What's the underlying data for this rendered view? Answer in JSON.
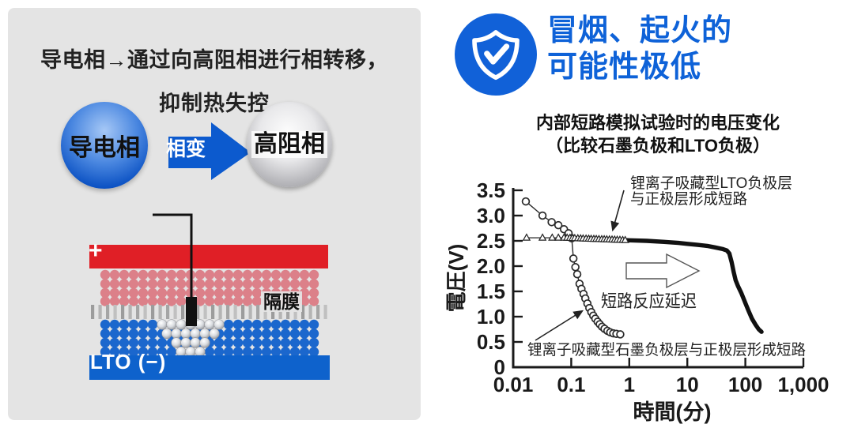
{
  "left_panel": {
    "heading_line1": "导电相→通过向高阻相进行相转移，",
    "heading_line2": "抑制热失控",
    "conductive_sphere_label": "导电相",
    "arrow_label": "相变",
    "resistive_sphere_label": "高阻相",
    "battery": {
      "positive_label": "+",
      "separator_label": "隔膜",
      "negative_label": "LTO (−)"
    },
    "colors": {
      "panel_bg": "#e4e4e4",
      "sphere_blue_edge": "#0a46ad",
      "arrow_blue": "#0c5ace",
      "positive_red": "#e01f26",
      "cathode_pink": "#dc8089",
      "separator_gray": "#a6a6a6",
      "anode_blue": "#1b67cd",
      "negative_blue": "#0e62cc",
      "nail_black": "#111111"
    }
  },
  "right_panel": {
    "title_line1": "冒烟、起火的",
    "title_line2": "可能性极低",
    "subtitle_line1": "内部短路模拟试验时的电压变化",
    "subtitle_line2": "（比较石墨负极和LTO负极）",
    "colors": {
      "accent_blue": "#0e62d8",
      "badge_blue": "#1161d8"
    }
  },
  "chart_data": {
    "type": "line",
    "title": "内部短路模拟试验时的电压变化（比较石墨负极和LTO负极）",
    "xlabel": "時間(分)",
    "ylabel": "電圧(V)",
    "x_scale": "log",
    "xlim": [
      0.01,
      1000
    ],
    "ylim": [
      0,
      3.5
    ],
    "grid": false,
    "legend": "none",
    "x_tick_values": [
      0.01,
      0.1,
      1,
      10,
      100,
      1000
    ],
    "x_tick_labels": [
      "0.01",
      "0.1",
      "1",
      "10",
      "100",
      "1,000"
    ],
    "y_tick_values": [
      0,
      0.5,
      1.0,
      1.5,
      2.0,
      2.5,
      3.0,
      3.5
    ],
    "y_tick_labels": [
      "0",
      "0.5",
      "1.0",
      "1.5",
      "2.0",
      "2.5",
      "3.0",
      "3.5"
    ],
    "series": [
      {
        "name": "锂离子吸藏型石墨负极层与正极层形成短路",
        "marker": "circle",
        "points": [
          [
            0.0165,
            3.28
          ],
          [
            0.032,
            3.0
          ],
          [
            0.046,
            2.87
          ],
          [
            0.06,
            2.81
          ],
          [
            0.075,
            2.73
          ],
          [
            0.09,
            2.65
          ],
          [
            0.102,
            2.55
          ],
          [
            0.109,
            2.15
          ],
          [
            0.118,
            1.98
          ],
          [
            0.127,
            1.84
          ],
          [
            0.139,
            1.65
          ],
          [
            0.15,
            1.55
          ],
          [
            0.163,
            1.45
          ],
          [
            0.175,
            1.36
          ],
          [
            0.19,
            1.26
          ],
          [
            0.205,
            1.17
          ],
          [
            0.222,
            1.09
          ],
          [
            0.24,
            1.02
          ],
          [
            0.26,
            0.96
          ],
          [
            0.285,
            0.9
          ],
          [
            0.31,
            0.85
          ],
          [
            0.34,
            0.8
          ],
          [
            0.375,
            0.76
          ],
          [
            0.42,
            0.72
          ],
          [
            0.47,
            0.69
          ],
          [
            0.53,
            0.67
          ],
          [
            0.6,
            0.66
          ],
          [
            0.7,
            0.65
          ]
        ]
      },
      {
        "name": "锂离子吸藏型LTO负极层与正极层形成短路",
        "marker": "triangle",
        "points": [
          [
            0.017,
            2.56
          ],
          [
            0.032,
            2.56
          ],
          [
            0.047,
            2.56
          ],
          [
            0.06,
            2.56
          ],
          [
            0.075,
            2.56
          ],
          [
            0.08,
            2.56
          ],
          [
            0.12,
            2.55
          ],
          [
            0.2,
            2.54
          ],
          [
            0.35,
            2.53
          ],
          [
            0.6,
            2.52
          ],
          [
            1,
            2.51
          ],
          [
            2,
            2.5
          ],
          [
            4,
            2.48
          ],
          [
            7,
            2.46
          ],
          [
            10,
            2.44
          ],
          [
            15,
            2.42
          ],
          [
            22,
            2.4
          ],
          [
            30,
            2.37
          ],
          [
            40,
            2.34
          ],
          [
            48,
            2.31
          ],
          [
            53,
            2.25
          ],
          [
            58,
            2.08
          ],
          [
            63,
            1.88
          ],
          [
            68,
            1.72
          ],
          [
            75,
            1.6
          ],
          [
            85,
            1.47
          ],
          [
            100,
            1.27
          ],
          [
            115,
            1.1
          ],
          [
            130,
            0.96
          ],
          [
            150,
            0.84
          ],
          [
            170,
            0.75
          ],
          [
            190,
            0.7
          ]
        ],
        "triangle_marker_times": [
          0.017,
          0.032,
          0.047,
          0.06,
          0.075,
          0.085,
          0.095,
          0.105,
          0.115,
          0.13,
          0.145,
          0.16,
          0.18,
          0.2,
          0.22,
          0.245,
          0.27,
          0.3,
          0.335,
          0.37,
          0.41,
          0.455,
          0.505,
          0.56,
          0.62,
          0.69,
          0.77,
          0.85
        ],
        "thick_from": 0.08
      }
    ],
    "annotations": [
      {
        "id": "lto-label",
        "lines": [
          "锂离子吸藏型LTO负极层",
          "与正极层形成短路"
        ]
      },
      {
        "id": "delay-label",
        "lines": [
          "短路反应延迟"
        ]
      },
      {
        "id": "graphite-label",
        "lines": [
          "锂离子吸藏型石墨负极层与正极层形成短路"
        ]
      }
    ]
  }
}
